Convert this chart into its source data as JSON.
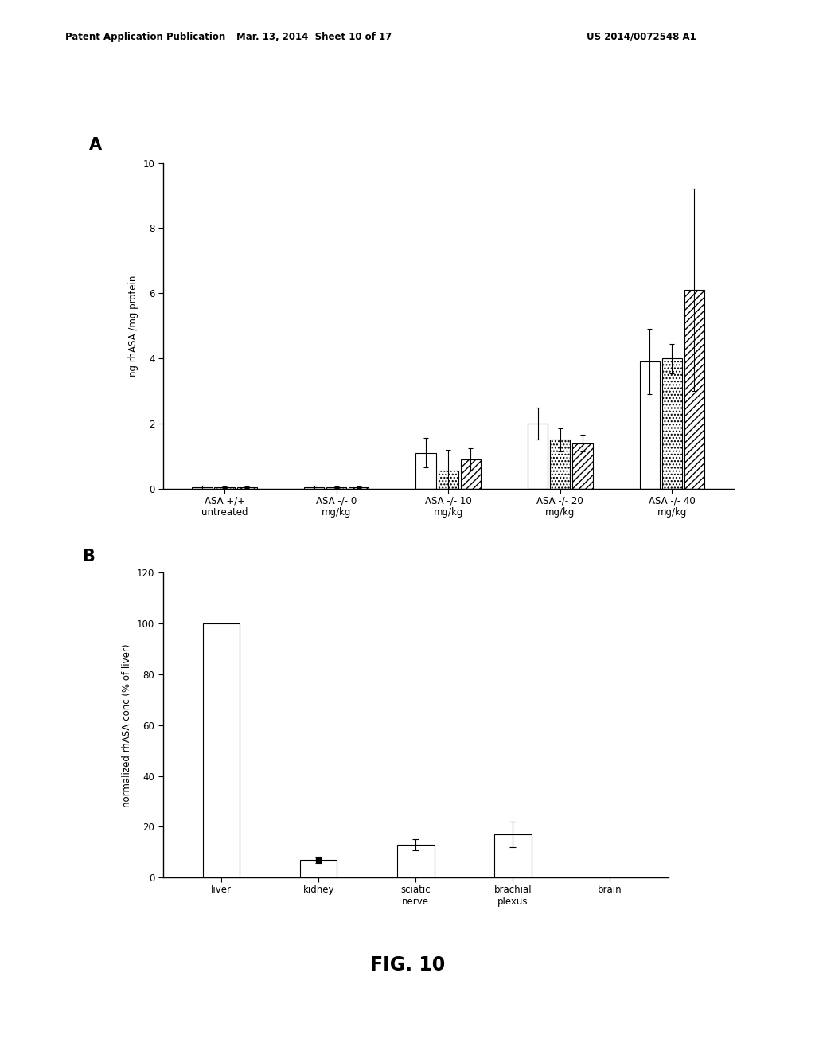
{
  "panel_A": {
    "label": "A",
    "groups": [
      "ASA +/+\nuntreated",
      "ASA -/- 0\nmg/kg",
      "ASA -/- 10\nmg/kg",
      "ASA -/- 20\nmg/kg",
      "ASA -/- 40\nmg/kg"
    ],
    "values": [
      [
        0.05,
        0.05,
        0.05
      ],
      [
        0.05,
        0.05,
        0.05
      ],
      [
        1.1,
        0.55,
        0.9
      ],
      [
        2.0,
        1.5,
        1.4
      ],
      [
        3.9,
        4.0,
        6.1
      ]
    ],
    "errors": [
      [
        0.05,
        0.02,
        0.02
      ],
      [
        0.05,
        0.02,
        0.02
      ],
      [
        0.45,
        0.65,
        0.35
      ],
      [
        0.5,
        0.35,
        0.25
      ],
      [
        1.0,
        0.45,
        3.1
      ]
    ],
    "ylim": [
      0,
      10
    ],
    "yticks": [
      0,
      2,
      4,
      6,
      8,
      10
    ],
    "ylabel": "ng rhASA /mg protein",
    "bar_width": 0.2
  },
  "panel_B": {
    "label": "B",
    "categories": [
      "liver",
      "kidney",
      "sciatic\nnerve",
      "brachial\nplexus",
      "brain"
    ],
    "values": [
      100,
      7,
      13,
      17,
      0
    ],
    "errors": [
      0,
      1.2,
      2.2,
      5.0,
      0
    ],
    "ylim": [
      0,
      120
    ],
    "yticks": [
      0,
      20,
      40,
      60,
      80,
      100,
      120
    ],
    "ylabel": "normalized rhASA conc (% of liver)",
    "bar_width": 0.45
  },
  "header_left": "Patent Application Publication",
  "header_mid": "Mar. 13, 2014  Sheet 10 of 17",
  "header_right": "US 2014/0072548 A1",
  "fig_label": "FIG. 10",
  "background_color": "#ffffff",
  "text_color": "#000000"
}
